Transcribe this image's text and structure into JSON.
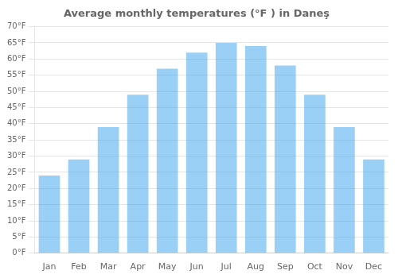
{
  "chart_data": {
    "type": "bar",
    "title": "Average monthly temperatures (°F ) in Daneş",
    "categories": [
      "Jan",
      "Feb",
      "Mar",
      "Apr",
      "May",
      "Jun",
      "Jul",
      "Aug",
      "Sep",
      "Oct",
      "Nov",
      "Dec"
    ],
    "values": [
      24,
      29,
      39,
      49,
      57,
      62,
      65,
      64,
      58,
      49,
      39,
      29
    ],
    "ylim": [
      0,
      70
    ],
    "yticks": [
      {
        "value": 0,
        "label": "0°F"
      },
      {
        "value": 5,
        "label": "5°F"
      },
      {
        "value": 10,
        "label": "10°F"
      },
      {
        "value": 15,
        "label": "15°F"
      },
      {
        "value": 20,
        "label": "20°F"
      },
      {
        "value": 25,
        "label": "25°F"
      },
      {
        "value": 30,
        "label": "30°F"
      },
      {
        "value": 35,
        "label": "35°F"
      },
      {
        "value": 40,
        "label": "40°F"
      },
      {
        "value": 45,
        "label": "45°F"
      },
      {
        "value": 50,
        "label": "50°F"
      },
      {
        "value": 55,
        "label": "55°F"
      },
      {
        "value": 60,
        "label": "60°F"
      },
      {
        "value": 65,
        "label": "65°F"
      },
      {
        "value": 70,
        "label": "70°F"
      }
    ],
    "grid": true
  }
}
